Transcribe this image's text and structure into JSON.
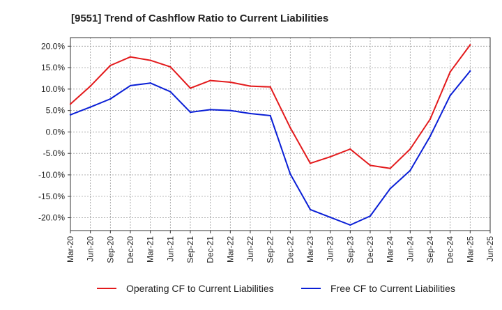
{
  "chart_data": {
    "type": "line",
    "title": "[9551]  Trend of Cashflow Ratio to Current Liabilities",
    "xlabel": "",
    "ylabel": "",
    "y_unit": "%",
    "ylim": [
      -23,
      22
    ],
    "y_ticks": [
      20,
      15,
      10,
      5,
      0,
      -5,
      -10,
      -15,
      -20
    ],
    "y_tick_labels": [
      "20.0%",
      "15.0%",
      "10.0%",
      "5.0%",
      "0.0%",
      "-5.0%",
      "-10.0%",
      "-15.0%",
      "-20.0%"
    ],
    "x": [
      "Mar-20",
      "Jun-20",
      "Sep-20",
      "Dec-20",
      "Mar-21",
      "Jun-21",
      "Sep-21",
      "Dec-21",
      "Mar-22",
      "Jun-22",
      "Sep-22",
      "Dec-22",
      "Mar-23",
      "Jun-23",
      "Sep-23",
      "Dec-23",
      "Mar-24",
      "Jun-24",
      "Sep-24",
      "Dec-24",
      "Mar-25",
      "Jun-25"
    ],
    "grid": true,
    "legend_position": "bottom",
    "series": [
      {
        "name": "Operating CF to Current Liabilities",
        "color": "#e31a1c",
        "points": [
          {
            "x": "Mar-20",
            "y": 6.5
          },
          {
            "x": "Jun-20",
            "y": 10.7
          },
          {
            "x": "Sep-20",
            "y": 15.5
          },
          {
            "x": "Dec-20",
            "y": 17.5
          },
          {
            "x": "Mar-21",
            "y": 16.7
          },
          {
            "x": "Jun-21",
            "y": 15.2
          },
          {
            "x": "Sep-21",
            "y": 10.2
          },
          {
            "x": "Dec-21",
            "y": 12.0
          },
          {
            "x": "Mar-22",
            "y": 11.6
          },
          {
            "x": "Jun-22",
            "y": 10.7
          },
          {
            "x": "Sep-22",
            "y": 10.5
          },
          {
            "x": "Dec-22",
            "y": 1.0
          },
          {
            "x": "Mar-23",
            "y": -7.3
          },
          {
            "x": "Jun-23",
            "y": -5.8
          },
          {
            "x": "Sep-23",
            "y": -4.0
          },
          {
            "x": "Dec-23",
            "y": -7.8
          },
          {
            "x": "Mar-24",
            "y": -8.5
          },
          {
            "x": "Jun-24",
            "y": -4.0
          },
          {
            "x": "Sep-24",
            "y": 3.0
          },
          {
            "x": "Dec-24",
            "y": 14.0
          },
          {
            "x": "Mar-25",
            "y": 20.3
          }
        ]
      },
      {
        "name": "Free CF to Current Liabilities",
        "color": "#0a1fd6",
        "points": [
          {
            "x": "Mar-20",
            "y": 4.0
          },
          {
            "x": "Jun-20",
            "y": 5.8
          },
          {
            "x": "Sep-20",
            "y": 7.7
          },
          {
            "x": "Dec-20",
            "y": 10.8
          },
          {
            "x": "Mar-21",
            "y": 11.4
          },
          {
            "x": "Jun-21",
            "y": 9.4
          },
          {
            "x": "Sep-21",
            "y": 4.6
          },
          {
            "x": "Dec-21",
            "y": 5.2
          },
          {
            "x": "Mar-22",
            "y": 5.0
          },
          {
            "x": "Jun-22",
            "y": 4.3
          },
          {
            "x": "Sep-22",
            "y": 3.8
          },
          {
            "x": "Dec-22",
            "y": -9.8
          },
          {
            "x": "Mar-23",
            "y": -18.1
          },
          {
            "x": "Jun-23",
            "y": -19.9
          },
          {
            "x": "Sep-23",
            "y": -21.7
          },
          {
            "x": "Dec-23",
            "y": -19.6
          },
          {
            "x": "Mar-24",
            "y": -13.2
          },
          {
            "x": "Jun-24",
            "y": -9.0
          },
          {
            "x": "Sep-24",
            "y": -1.0
          },
          {
            "x": "Dec-24",
            "y": 8.5
          },
          {
            "x": "Mar-25",
            "y": 14.2
          }
        ]
      }
    ]
  }
}
